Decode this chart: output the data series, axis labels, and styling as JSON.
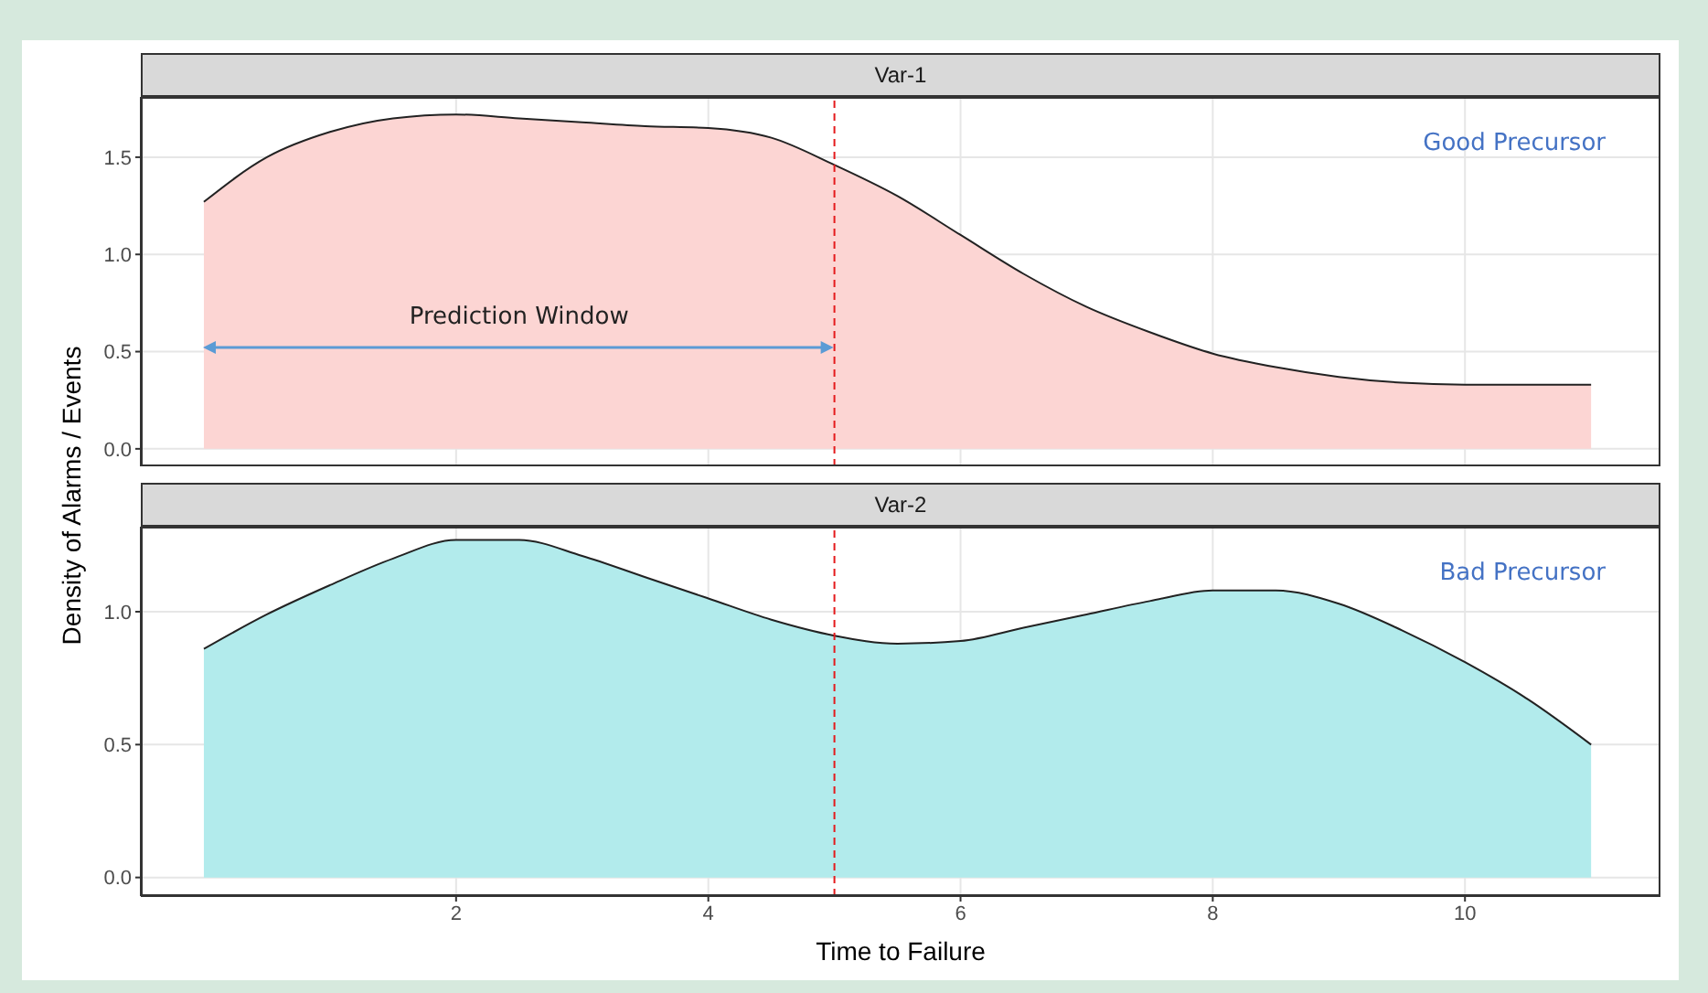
{
  "chart_data": [
    {
      "type": "area",
      "title": "Var-1",
      "ylabel": "Density of Alarms / Events",
      "x": [
        0,
        0.5,
        1,
        1.5,
        2,
        2.5,
        3,
        3.5,
        4,
        4.5,
        5,
        5.5,
        6,
        6.5,
        7,
        7.5,
        8,
        8.5,
        9,
        9.5,
        10,
        10.5,
        11
      ],
      "series": [
        {
          "color": "#fcd5d3",
          "values": [
            1.27,
            1.5,
            1.63,
            1.7,
            1.72,
            1.7,
            1.68,
            1.66,
            1.65,
            1.6,
            1.46,
            1.3,
            1.1,
            0.9,
            0.73,
            0.6,
            0.49,
            0.42,
            0.37,
            0.34,
            0.33,
            0.33,
            0.33
          ]
        }
      ],
      "xlim": [
        -0.5,
        11.55
      ],
      "xticks": [
        {
          "value": 2,
          "label": null
        },
        {
          "value": 4,
          "label": null
        },
        {
          "value": 6,
          "label": null
        },
        {
          "value": 8,
          "label": null
        },
        {
          "value": 10,
          "label": null
        }
      ],
      "ylim": [
        -0.09,
        1.81
      ],
      "yticks": [
        {
          "value": 0,
          "label": "0.0"
        },
        {
          "value": 0.5,
          "label": "0.5"
        },
        {
          "value": 1,
          "label": "1.0"
        },
        {
          "value": 1.5,
          "label": "1.5"
        }
      ],
      "tick_labels": "y",
      "grid": true,
      "ref_lines": [
        {
          "axis": "x",
          "value": 5,
          "label": null,
          "color": "#e41a1c",
          "line_style": "dashed"
        }
      ],
      "annotations": [
        "Good Precursor",
        "Prediction Window"
      ]
    },
    {
      "type": "area",
      "title": "Var-2",
      "xlabel": "Time to Failure",
      "x": [
        0,
        0.5,
        1,
        1.5,
        2,
        2.5,
        3,
        3.5,
        4,
        4.5,
        5,
        5.5,
        6,
        6.5,
        7,
        7.5,
        8,
        8.5,
        9,
        9.5,
        10,
        10.5,
        11
      ],
      "series": [
        {
          "color": "#b2ebec",
          "values": [
            0.86,
            0.99,
            1.1,
            1.2,
            1.27,
            1.27,
            1.21,
            1.13,
            1.05,
            0.97,
            0.91,
            0.88,
            0.89,
            0.94,
            0.99,
            1.04,
            1.08,
            1.08,
            1.03,
            0.93,
            0.81,
            0.67,
            0.5
          ]
        }
      ],
      "xlim": [
        -0.5,
        11.55
      ],
      "xticks": [
        2,
        4,
        6,
        8,
        10
      ],
      "ylim": [
        -0.07,
        1.32
      ],
      "yticks": [
        {
          "value": 0,
          "label": "0.0"
        },
        {
          "value": 0.5,
          "label": "0.5"
        },
        {
          "value": 1,
          "label": "1.0"
        }
      ],
      "grid": true,
      "ref_lines": [
        {
          "axis": "x",
          "value": 5,
          "label": null,
          "color": "#e41a1c",
          "line_style": "dashed"
        }
      ],
      "annotations": [
        "Bad Precursor"
      ]
    }
  ]
}
